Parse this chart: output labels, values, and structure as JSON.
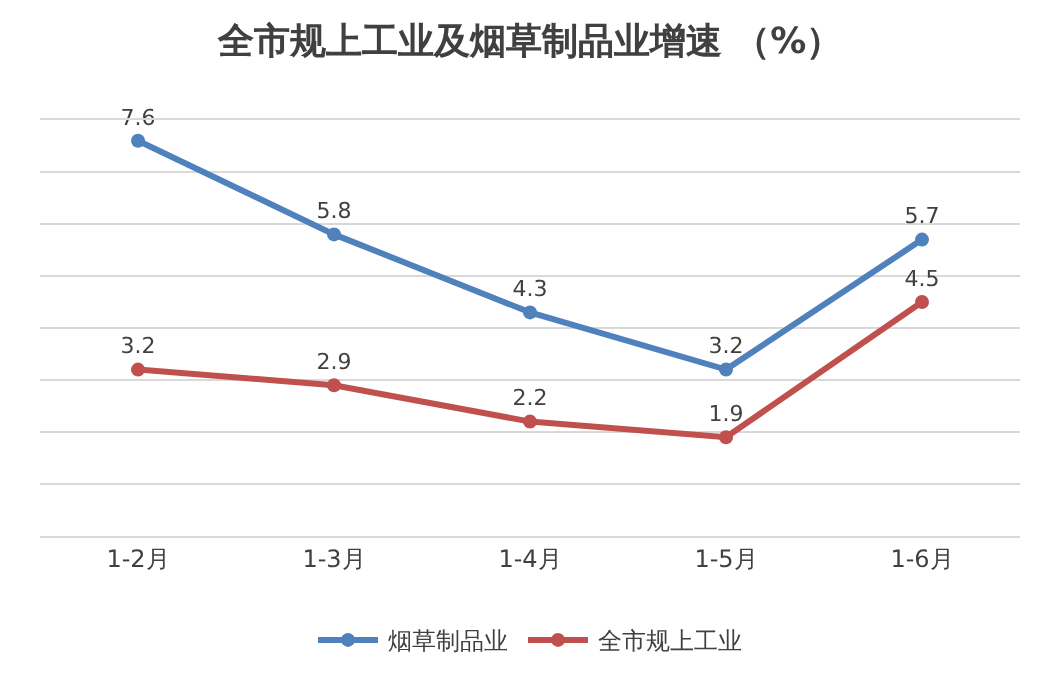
{
  "chart_data": {
    "type": "line",
    "title": "全市规上工业及烟草制品业增速 （%）",
    "categories": [
      "1-2月",
      "1-3月",
      "1-4月",
      "1-5月",
      "1-6月"
    ],
    "series": [
      {
        "name": "烟草制品业",
        "color": "#4f81bd",
        "values": [
          7.6,
          5.8,
          4.3,
          3.2,
          5.7
        ]
      },
      {
        "name": "全市规上工业",
        "color": "#c0504d",
        "values": [
          3.2,
          2.9,
          2.2,
          1.9,
          4.5
        ]
      }
    ],
    "ylim": [
      0,
      8
    ],
    "yticks": [
      {
        "value": 0,
        "label": null
      },
      {
        "value": 1,
        "label": null
      },
      {
        "value": 2,
        "label": null
      },
      {
        "value": 3,
        "label": null
      },
      {
        "value": 4,
        "label": null
      },
      {
        "value": 5,
        "label": null
      },
      {
        "value": 6,
        "label": null
      },
      {
        "value": 7,
        "label": null
      }
    ],
    "tick_labels": "x",
    "grid": "y",
    "legend": "bottom",
    "marker": "circle",
    "line_style": "solid",
    "data_labels": true
  }
}
